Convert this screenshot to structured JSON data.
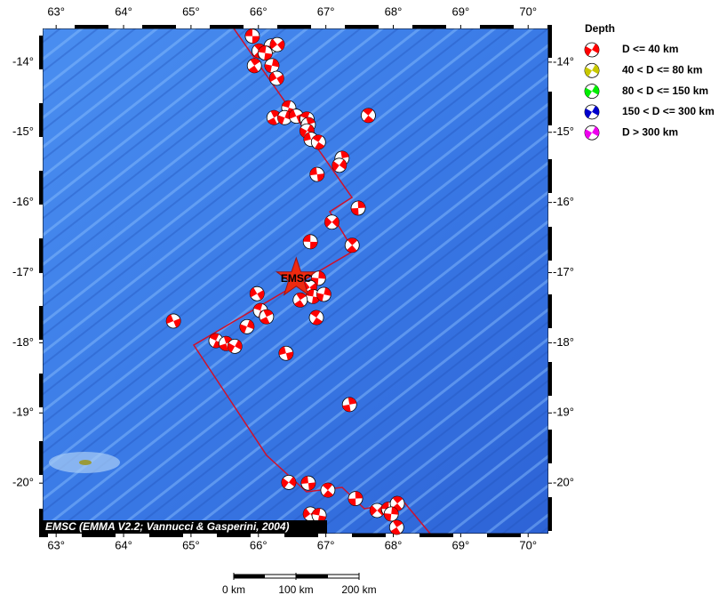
{
  "map": {
    "type": "scatter",
    "xlim": [
      62.8,
      70.3
    ],
    "ylim": [
      -20.72,
      -13.52
    ],
    "xticks": [
      {
        "value": 63,
        "label": "63°"
      },
      {
        "value": 64,
        "label": "64°"
      },
      {
        "value": 65,
        "label": "65°"
      },
      {
        "value": 66,
        "label": "66°"
      },
      {
        "value": 67,
        "label": "67°"
      },
      {
        "value": 68,
        "label": "68°"
      },
      {
        "value": 69,
        "label": "69°"
      },
      {
        "value": 70,
        "label": "70°"
      }
    ],
    "yticks": [
      {
        "value": -14,
        "label": "-14°"
      },
      {
        "value": -15,
        "label": "-15°"
      },
      {
        "value": -16,
        "label": "-16°"
      },
      {
        "value": -17,
        "label": "-17°"
      },
      {
        "value": -18,
        "label": "-18°"
      },
      {
        "value": -19,
        "label": "-19°"
      },
      {
        "value": -20,
        "label": "-20°"
      }
    ],
    "events": {
      "lon": [
        65.91,
        66.01,
        66.19,
        66.28,
        66.1,
        65.94,
        66.2,
        66.27,
        66.45,
        66.23,
        66.39,
        66.56,
        66.72,
        66.74,
        66.72,
        66.78,
        66.89,
        67.24,
        67.2,
        66.87,
        67.63,
        67.48,
        67.09,
        66.77,
        67.39,
        66.89,
        66.76,
        66.81,
        66.62,
        66.97,
        65.98,
        66.03,
        66.12,
        65.83,
        64.74,
        65.37,
        65.52,
        65.65,
        66.41,
        66.86,
        67.35,
        66.45,
        66.74,
        67.03,
        67.44,
        67.76,
        67.93,
        68.06,
        67.97,
        66.77,
        66.9,
        68.05
      ],
      "lat": [
        -13.63,
        -13.84,
        -13.77,
        -13.75,
        -13.87,
        -14.05,
        -14.05,
        -14.23,
        -14.65,
        -14.79,
        -14.79,
        -14.77,
        -14.81,
        -14.89,
        -14.98,
        -15.1,
        -15.14,
        -15.37,
        -15.47,
        -15.6,
        -14.76,
        -16.08,
        -16.28,
        -16.56,
        -16.61,
        -17.08,
        -17.21,
        -17.34,
        -17.39,
        -17.31,
        -17.3,
        -17.54,
        -17.63,
        -17.77,
        -17.69,
        -17.97,
        -18.01,
        -18.05,
        -18.15,
        -17.64,
        -18.88,
        -19.99,
        -20.0,
        -20.1,
        -20.22,
        -20.39,
        -20.37,
        -20.29,
        -20.44,
        -20.44,
        -20.46,
        -20.63
      ]
    },
    "mainshock": {
      "label": "EMSC",
      "lon": 66.56,
      "lat": -17.08
    },
    "credit": "EMSC (EMMA V2.2; Vannucci & Gasperini, 2004)",
    "legend": {
      "title": "Depth",
      "items": [
        {
          "label": "D <= 40 km",
          "color": "#ff0000"
        },
        {
          "label": "40 < D <= 80 km",
          "color": "#c8c800"
        },
        {
          "label": "80 < D <= 150 km",
          "color": "#00ee00"
        },
        {
          "label": "150 < D <= 300 km",
          "color": "#0000cc"
        },
        {
          "label": "D > 300 km",
          "color": "#ee00ee"
        }
      ]
    },
    "scale_bar": {
      "labels": [
        "0 km",
        "100 km",
        "200 km"
      ]
    }
  }
}
